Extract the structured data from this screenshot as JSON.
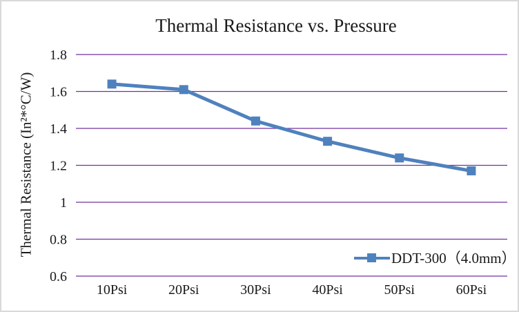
{
  "frame": {
    "background": "#ffffff",
    "border_color": "#d9d9d9"
  },
  "chart_data": {
    "type": "line",
    "title": "Thermal Resistance vs. Pressure",
    "xlabel": "",
    "ylabel": "Thermal Resistance (In²*°C/W)",
    "categories": [
      "10Psi",
      "20Psi",
      "30Psi",
      "40Psi",
      "50Psi",
      "60Psi"
    ],
    "series": [
      {
        "name": "DDT-300（4.0mm）",
        "values": [
          1.64,
          1.61,
          1.44,
          1.33,
          1.24,
          1.17
        ],
        "color": "#4F81BD",
        "marker": "square"
      }
    ],
    "ylim": [
      0.6,
      1.8
    ],
    "ytick_step": 0.2,
    "yticks": [
      1.8,
      1.6,
      1.4,
      1.2,
      1.0,
      0.8,
      0.6
    ],
    "ytick_labels": [
      "1.8",
      "1.6",
      "1.4",
      "1.2",
      "1",
      "0.8",
      "0.6"
    ],
    "grid": "horizontal",
    "gridline_color": "#7030A0",
    "text_color": "#1a1a1a",
    "legend_position": "inside-bottom-right"
  }
}
